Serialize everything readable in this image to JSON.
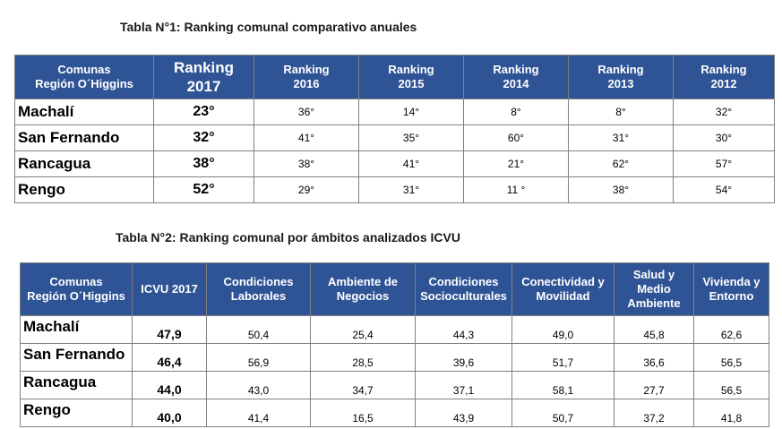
{
  "table1": {
    "caption": "Tabla N°1: Ranking comunal comparativo anuales",
    "headers": [
      [
        "Comunas",
        "Región O´Higgins"
      ],
      [
        "Ranking",
        "2017"
      ],
      [
        "Ranking",
        "2016"
      ],
      [
        "Ranking",
        "2015"
      ],
      [
        "Ranking",
        "2014"
      ],
      [
        "Ranking",
        "2013"
      ],
      [
        "Ranking",
        "2012"
      ]
    ],
    "rows": [
      [
        "Machalí",
        "23°",
        "36°",
        "14°",
        "8°",
        "8°",
        "32°"
      ],
      [
        "San Fernando",
        "32°",
        "41°",
        "35°",
        "60°",
        "31°",
        "30°"
      ],
      [
        "Rancagua",
        "38°",
        "38°",
        "41°",
        "21°",
        "62°",
        "57°"
      ],
      [
        "Rengo",
        "52°",
        "29°",
        "31°",
        "11 °",
        "38°",
        "54°"
      ]
    ]
  },
  "table2": {
    "caption": "Tabla N°2: Ranking comunal por ámbitos analizados ICVU",
    "headers": [
      [
        "Comunas",
        "Región O´Higgins"
      ],
      [
        "ICVU 2017"
      ],
      [
        "Condiciones",
        "Laborales"
      ],
      [
        "Ambiente de",
        "Negocios"
      ],
      [
        "Condiciones",
        "Socioculturales"
      ],
      [
        "Conectividad y",
        "Movilidad"
      ],
      [
        "Salud y",
        "Medio",
        "Ambiente"
      ],
      [
        "Vivienda y",
        "Entorno"
      ]
    ],
    "rows": [
      [
        "Machalí",
        "47,9",
        "50,4",
        "25,4",
        "44,3",
        "49,0",
        "45,8",
        "62,6"
      ],
      [
        "San Fernando",
        "46,4",
        "56,9",
        "28,5",
        "39,6",
        "51,7",
        "36,6",
        "56,5"
      ],
      [
        "Rancagua",
        "44,0",
        "43,0",
        "34,7",
        "37,1",
        "58,1",
        "27,7",
        "56,5"
      ],
      [
        "Rengo",
        "40,0",
        "41,4",
        "16,5",
        "43,9",
        "50,7",
        "37,2",
        "41,8"
      ]
    ]
  }
}
